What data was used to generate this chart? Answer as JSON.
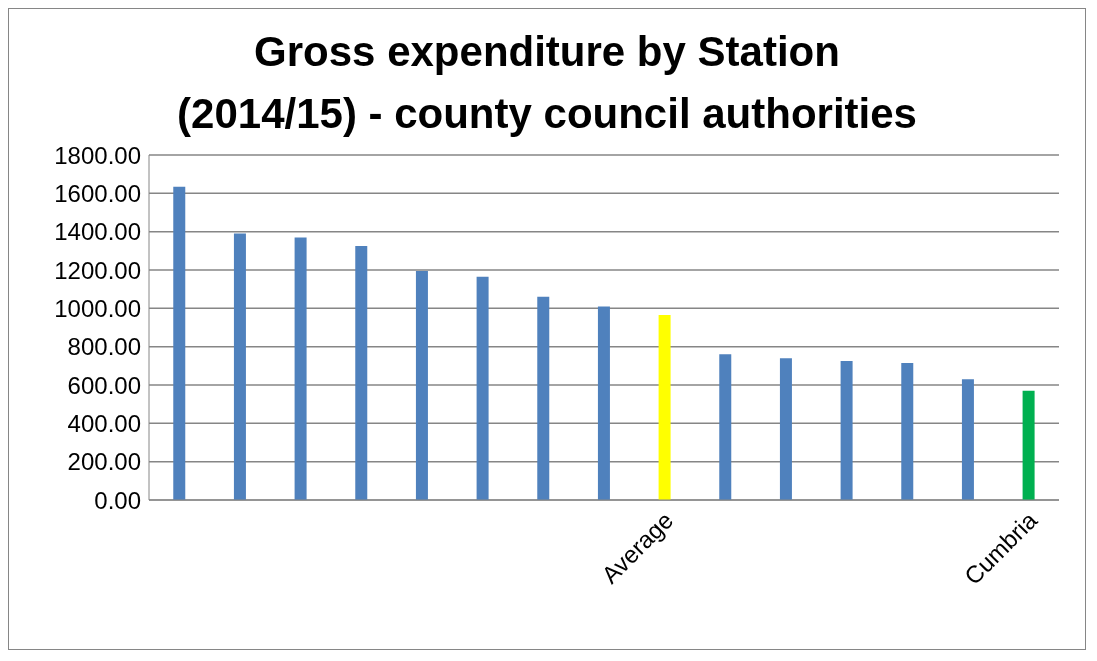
{
  "chart_data": {
    "type": "bar",
    "title": "Gross expenditure by Station (2014/15) - county council authorities",
    "categories": [
      null,
      null,
      null,
      null,
      null,
      null,
      null,
      null,
      "Average",
      null,
      null,
      null,
      null,
      null,
      "Cumbria"
    ],
    "values": [
      1635,
      1390,
      1370,
      1325,
      1195,
      1165,
      1060,
      1010,
      965,
      760,
      740,
      725,
      715,
      630,
      570
    ],
    "colors": [
      "#4f81bd",
      "#4f81bd",
      "#4f81bd",
      "#4f81bd",
      "#4f81bd",
      "#4f81bd",
      "#4f81bd",
      "#4f81bd",
      "#ffff00",
      "#4f81bd",
      "#4f81bd",
      "#4f81bd",
      "#4f81bd",
      "#4f81bd",
      "#00b050"
    ],
    "ylim": [
      0,
      1800
    ],
    "yticks": [
      {
        "value": 0,
        "label": "0.00"
      },
      {
        "value": 200,
        "label": "200.00"
      },
      {
        "value": 400,
        "label": "400.00"
      },
      {
        "value": 600,
        "label": "600.00"
      },
      {
        "value": 800,
        "label": "800.00"
      },
      {
        "value": 1000,
        "label": "1000.00"
      },
      {
        "value": 1200,
        "label": "1200.00"
      },
      {
        "value": 1400,
        "label": "1400.00"
      },
      {
        "value": 1600,
        "label": "1600.00"
      },
      {
        "value": 1800,
        "label": "1800.00"
      }
    ],
    "grid": "y",
    "legend": false
  }
}
